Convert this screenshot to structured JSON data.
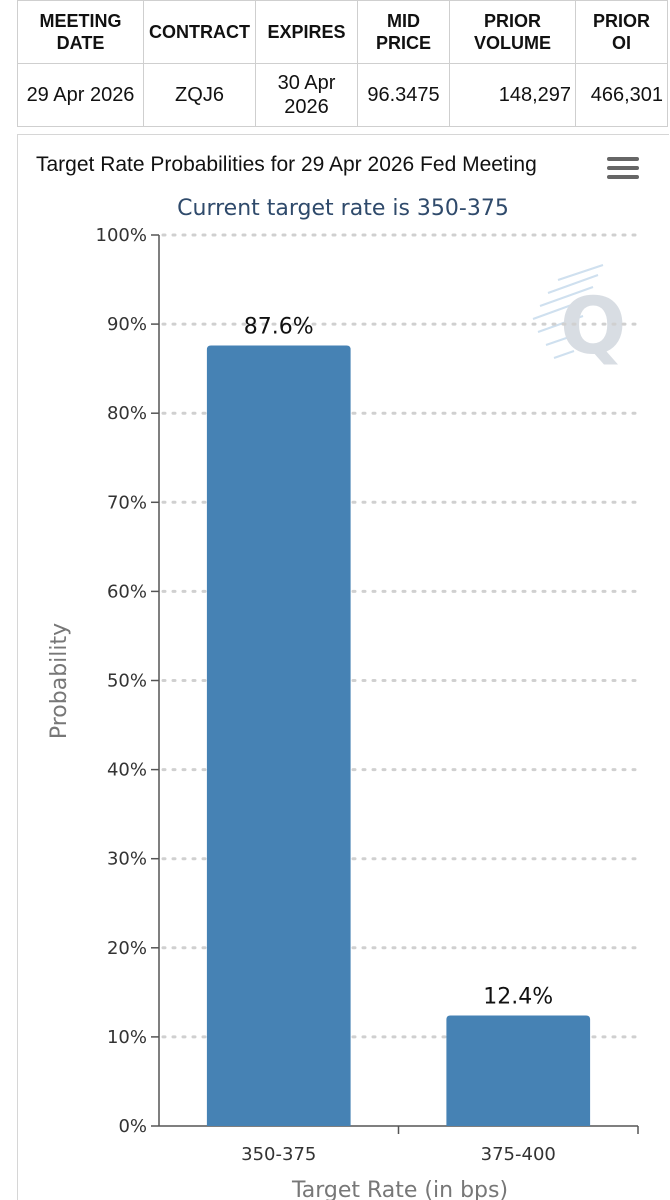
{
  "table": {
    "headers": [
      "MEETING\nDATE",
      "CONTRACT",
      "EXPIRES",
      "MID\nPRICE",
      "PRIOR\nVOLUME",
      "PRIOR\nOI"
    ],
    "row": [
      "29 Apr 2026",
      "ZQJ6",
      "30 Apr\n2026",
      "96.3475",
      "148,297",
      "466,301"
    ]
  },
  "menu_icon": "hamburger-menu-icon",
  "watermark": "Q",
  "colors": {
    "bar": "#4682b4",
    "gridline": "#d0d0d0",
    "axis": "#555555",
    "subtitle": "#2f4a6b"
  },
  "chart_data": {
    "type": "bar",
    "title": "Target Rate Probabilities for 29 Apr 2026 Fed Meeting",
    "subtitle": "Current target rate is 350-375",
    "xlabel": "Target Rate (in bps)",
    "ylabel": "Probability",
    "categories": [
      "350-375",
      "375-400"
    ],
    "values": [
      87.6,
      12.4
    ],
    "data_labels": [
      "87.6%",
      "12.4%"
    ],
    "ylim": [
      0,
      100
    ],
    "yticks": [
      0,
      10,
      20,
      30,
      40,
      50,
      60,
      70,
      80,
      90,
      100
    ],
    "ytick_labels": [
      "0%",
      "10%",
      "20%",
      "30%",
      "40%",
      "50%",
      "60%",
      "70%",
      "80%",
      "90%",
      "100%"
    ],
    "grid": true,
    "legend": "none"
  }
}
